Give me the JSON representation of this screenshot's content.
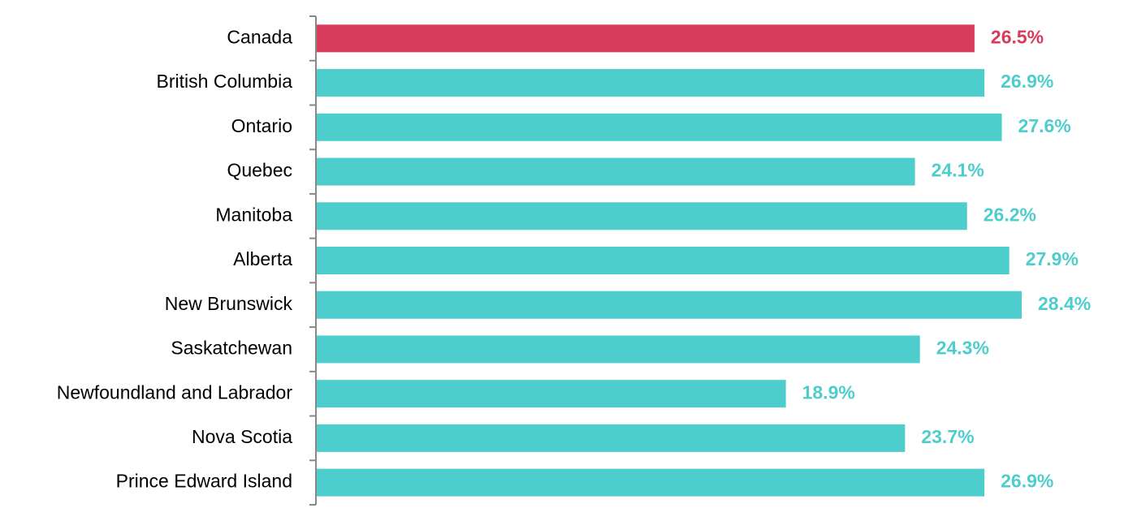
{
  "chart_data": {
    "type": "hbar",
    "categories": [
      "Canada",
      "British Columbia",
      "Ontario",
      "Quebec",
      "Manitoba",
      "Alberta",
      "New Brunswick",
      "Saskatchewan",
      "Newfoundland and Labrador",
      "Nova Scotia",
      "Prince Edward Island"
    ],
    "values": [
      26.5,
      26.9,
      27.6,
      24.1,
      26.2,
      27.9,
      28.4,
      24.3,
      18.9,
      23.7,
      26.9
    ],
    "value_labels": [
      "26.5%",
      "26.9%",
      "27.6%",
      "24.1%",
      "26.2%",
      "27.9%",
      "28.4%",
      "24.3%",
      "18.9%",
      "23.7%",
      "26.9%"
    ],
    "colors": [
      "#d93b5a",
      "#4ecdcd",
      "#4ecdcd",
      "#4ecdcd",
      "#4ecdcd",
      "#4ecdcd",
      "#4ecdcd",
      "#4ecdcd",
      "#4ecdcd",
      "#4ecdcd",
      "#4ecdcd"
    ]
  }
}
